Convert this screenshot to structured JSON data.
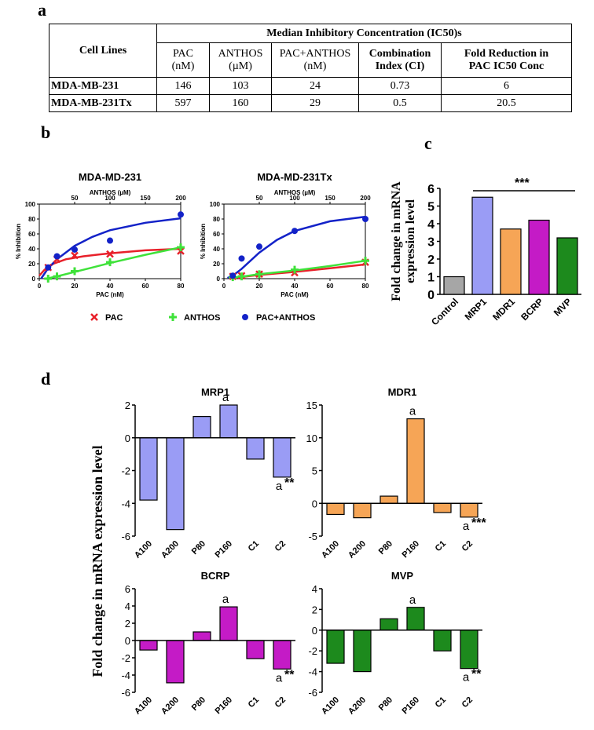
{
  "panel_labels": {
    "a": "a",
    "b": "b",
    "c": "c",
    "d": "d"
  },
  "table": {
    "row_header": "Cell Lines",
    "group_header": "Median Inhibitory Concentration (IC50)s",
    "columns": [
      {
        "line1": "PAC",
        "line2": "(nM)"
      },
      {
        "line1": "ANTHOS",
        "line2": "(µM)"
      },
      {
        "line1": "PAC+ANTHOS",
        "line2": "(nM)"
      },
      {
        "line1": "Combination",
        "line2": "Index (CI)"
      },
      {
        "line1": "Fold Reduction in",
        "line2": "PAC IC50 Conc"
      }
    ],
    "rows": [
      {
        "name": "MDA-MB-231",
        "values": [
          "146",
          "103",
          "24",
          "0.73",
          "6"
        ]
      },
      {
        "name": "MDA-MB-231Tx",
        "values": [
          "597",
          "160",
          "29",
          "0.5",
          "20.5"
        ]
      }
    ]
  },
  "chart_data": [
    {
      "id": "b1",
      "type": "scatter",
      "title": "MDA-MD-231",
      "xlabel": "PAC (nM)",
      "x2label": "ANTHOS (µM)",
      "ylabel": "% Inhibition",
      "xlim": [
        0,
        80
      ],
      "x2lim": [
        0,
        200
      ],
      "ylim": [
        0,
        100
      ],
      "xticks": [
        "0",
        "20",
        "40",
        "60",
        "80"
      ],
      "x2ticks": [
        "50",
        "100",
        "150",
        "200"
      ],
      "yticks": [
        "0",
        "20",
        "40",
        "60",
        "80",
        "100"
      ],
      "series": [
        {
          "name": "PAC",
          "color": "#e8202a",
          "marker": "x",
          "x": [
            5,
            10,
            20,
            40,
            80
          ],
          "y": [
            15,
            26,
            31,
            33,
            37
          ],
          "curve": [
            [
              0,
              4
            ],
            [
              3,
              12
            ],
            [
              8,
              20
            ],
            [
              15,
              26
            ],
            [
              25,
              30
            ],
            [
              40,
              34
            ],
            [
              60,
              38
            ],
            [
              80,
              40
            ]
          ]
        },
        {
          "name": "ANTHOS",
          "color": "#3fe23a",
          "marker": "plus",
          "x": [
            5,
            10,
            20,
            40,
            80
          ],
          "y": [
            0,
            3,
            10,
            22,
            42
          ],
          "curve": [
            [
              4,
              0
            ],
            [
              10,
              3
            ],
            [
              20,
              9
            ],
            [
              30,
              15
            ],
            [
              40,
              21
            ],
            [
              60,
              32
            ],
            [
              80,
              42
            ]
          ]
        },
        {
          "name": "PAC+ANTHOS",
          "color": "#1322c8",
          "marker": "dot",
          "x": [
            5,
            10,
            20,
            40,
            80
          ],
          "y": [
            15,
            30,
            39,
            51,
            86
          ],
          "curve": [
            [
              1,
              0
            ],
            [
              5,
              14
            ],
            [
              10,
              26
            ],
            [
              20,
              44
            ],
            [
              30,
              56
            ],
            [
              40,
              65
            ],
            [
              60,
              75
            ],
            [
              80,
              81
            ]
          ]
        }
      ]
    },
    {
      "id": "b2",
      "type": "scatter",
      "title": "MDA-MD-231Tx",
      "xlabel": "PAC (nM)",
      "x2label": "ANTHOS (µM)",
      "ylabel": "% Inhibition",
      "xlim": [
        0,
        80
      ],
      "x2lim": [
        0,
        200
      ],
      "ylim": [
        0,
        100
      ],
      "xticks": [
        "0",
        "20",
        "40",
        "60",
        "80"
      ],
      "x2ticks": [
        "50",
        "100",
        "150",
        "200"
      ],
      "yticks": [
        "0",
        "20",
        "40",
        "60",
        "80",
        "100"
      ],
      "series": [
        {
          "name": "PAC",
          "color": "#e8202a",
          "marker": "x",
          "x": [
            5,
            10,
            20,
            40,
            80
          ],
          "y": [
            3,
            4,
            6,
            8,
            22
          ],
          "curve": [
            [
              5,
              1
            ],
            [
              20,
              5
            ],
            [
              40,
              9
            ],
            [
              60,
              14
            ],
            [
              80,
              19
            ]
          ]
        },
        {
          "name": "ANTHOS",
          "color": "#3fe23a",
          "marker": "plus",
          "x": [
            5,
            10,
            20,
            40,
            80
          ],
          "y": [
            2,
            3,
            6,
            12,
            24
          ],
          "curve": [
            [
              5,
              1
            ],
            [
              20,
              6
            ],
            [
              40,
              11
            ],
            [
              60,
              17
            ],
            [
              80,
              24
            ]
          ]
        },
        {
          "name": "PAC+ANTHOS",
          "color": "#1322c8",
          "marker": "dot",
          "x": [
            5,
            10,
            20,
            40,
            80
          ],
          "y": [
            4,
            27,
            43,
            64,
            80
          ],
          "curve": [
            [
              2,
              1
            ],
            [
              5,
              4
            ],
            [
              10,
              13
            ],
            [
              20,
              35
            ],
            [
              30,
              52
            ],
            [
              40,
              64
            ],
            [
              60,
              77
            ],
            [
              80,
              83
            ]
          ]
        }
      ]
    },
    {
      "id": "c",
      "type": "bar",
      "title": "",
      "ylabel": "Fold change in mRNA expression level",
      "categories": [
        "Control",
        "MRP1",
        "MDR1",
        "BCRP",
        "MVP"
      ],
      "values": [
        1.0,
        5.5,
        3.7,
        4.2,
        3.2
      ],
      "colors": [
        "#a6a6a6",
        "#9a9cf5",
        "#f6a556",
        "#c41bc6",
        "#1d8a1d"
      ],
      "ylim": [
        0,
        6
      ],
      "yticks": [
        "0",
        "1",
        "2",
        "3",
        "4",
        "5",
        "6"
      ],
      "significance": "***"
    },
    {
      "id": "d1",
      "type": "bar",
      "title": "MRP1",
      "color": "#9a9cf5",
      "categories": [
        "A100",
        "A200",
        "P80",
        "P160",
        "C1",
        "C2"
      ],
      "values": [
        -3.8,
        -5.6,
        1.3,
        2.0,
        -1.3,
        -2.4
      ],
      "ylim": [
        -6,
        2
      ],
      "yticks": [
        "-6",
        "-4",
        "-2",
        "0",
        "2"
      ],
      "annotations": [
        {
          "index": 3,
          "text": "a"
        },
        {
          "index": 5,
          "text": "a",
          "stars": "**"
        }
      ]
    },
    {
      "id": "d2",
      "type": "bar",
      "title": "MDR1",
      "color": "#f6a556",
      "categories": [
        "A100",
        "A200",
        "P80",
        "P160",
        "C1",
        "C2"
      ],
      "values": [
        -1.7,
        -2.2,
        1.1,
        12.9,
        -1.4,
        -2.1
      ],
      "ylim": [
        -5,
        15
      ],
      "yticks": [
        "-5",
        "0",
        "5",
        "10",
        "15"
      ],
      "annotations": [
        {
          "index": 3,
          "text": "a"
        },
        {
          "index": 5,
          "text": "a",
          "stars": "***"
        }
      ]
    },
    {
      "id": "d3",
      "type": "bar",
      "title": "BCRP",
      "color": "#c41bc6",
      "categories": [
        "A100",
        "A200",
        "P80",
        "P160",
        "C1",
        "C2"
      ],
      "values": [
        -1.1,
        -4.9,
        1.0,
        3.9,
        -2.1,
        -3.3
      ],
      "ylim": [
        -6,
        6
      ],
      "yticks": [
        "-6",
        "-4",
        "-2",
        "0",
        "2",
        "4",
        "6"
      ],
      "annotations": [
        {
          "index": 3,
          "text": "a"
        },
        {
          "index": 5,
          "text": "a",
          "stars": "**"
        }
      ]
    },
    {
      "id": "d4",
      "type": "bar",
      "title": "MVP",
      "color": "#1d8a1d",
      "categories": [
        "A100",
        "A200",
        "P80",
        "P160",
        "C1",
        "C2"
      ],
      "values": [
        -3.2,
        -4.0,
        1.1,
        2.2,
        -2.0,
        -3.7
      ],
      "ylim": [
        -6,
        4
      ],
      "yticks": [
        "-6",
        "-4",
        "-2",
        "0",
        "2",
        "4"
      ],
      "annotations": [
        {
          "index": 3,
          "text": "a"
        },
        {
          "index": 5,
          "text": "a",
          "stars": "**"
        }
      ]
    }
  ],
  "legend": [
    "PAC",
    "ANTHOS",
    "PAC+ANTHOS"
  ],
  "d_ylabel": "Fold change in mRNA expression  level"
}
